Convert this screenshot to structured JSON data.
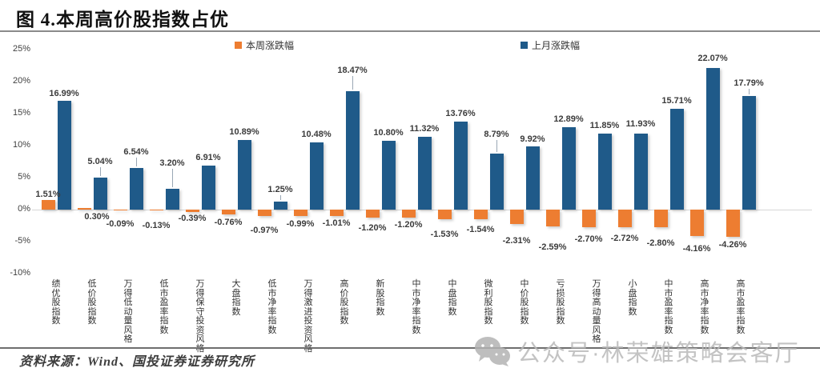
{
  "title": "图 4.本周高价股指数占优",
  "chart_data": {
    "type": "bar",
    "categories": [
      "绩优股指数",
      "低价股指数",
      "万得低动量风格",
      "低市盈率指数",
      "万得保守投资风格",
      "大盘指数",
      "低市净率指数",
      "万得激进投资风格",
      "高价股指数",
      "新股指数",
      "中市净率指数",
      "中盘指数",
      "微利股指数",
      "中价股指数",
      "亏损股指数",
      "万得高动量风格",
      "小盘指数",
      "中市盈率指数",
      "高市净率指数",
      "高市盈率指数"
    ],
    "series": [
      {
        "name": "本周涨跌幅",
        "color": "#ED7D31",
        "values": [
          1.51,
          0.3,
          -0.09,
          -0.13,
          -0.39,
          -0.76,
          -0.97,
          -0.99,
          -1.01,
          -1.2,
          -1.2,
          -1.53,
          -1.54,
          -2.31,
          -2.59,
          -2.7,
          -2.72,
          -2.8,
          -4.16,
          -4.26
        ]
      },
      {
        "name": "上月涨跌幅",
        "color": "#1F5A89",
        "values": [
          16.99,
          5.04,
          6.54,
          3.2,
          6.91,
          10.89,
          1.25,
          10.48,
          18.47,
          10.8,
          11.32,
          13.76,
          8.79,
          9.92,
          12.89,
          11.85,
          11.93,
          15.71,
          22.07,
          17.79
        ]
      }
    ],
    "y_ticks": [
      25,
      20,
      15,
      10,
      5,
      0,
      -5,
      -10
    ],
    "y_tick_labels": [
      "25%",
      "20%",
      "15%",
      "10%",
      "5%",
      "0%",
      "-5%",
      "-10%"
    ],
    "ylim": [
      -10,
      25
    ],
    "grid": false,
    "legend_position": "top",
    "value_label_format": "0.00%"
  },
  "footer": {
    "source": "资料来源：Wind、国投证券证券研究所"
  },
  "watermark": {
    "icon": "wechat-icon",
    "text": "公众号·林荣雄策略会客厅"
  }
}
